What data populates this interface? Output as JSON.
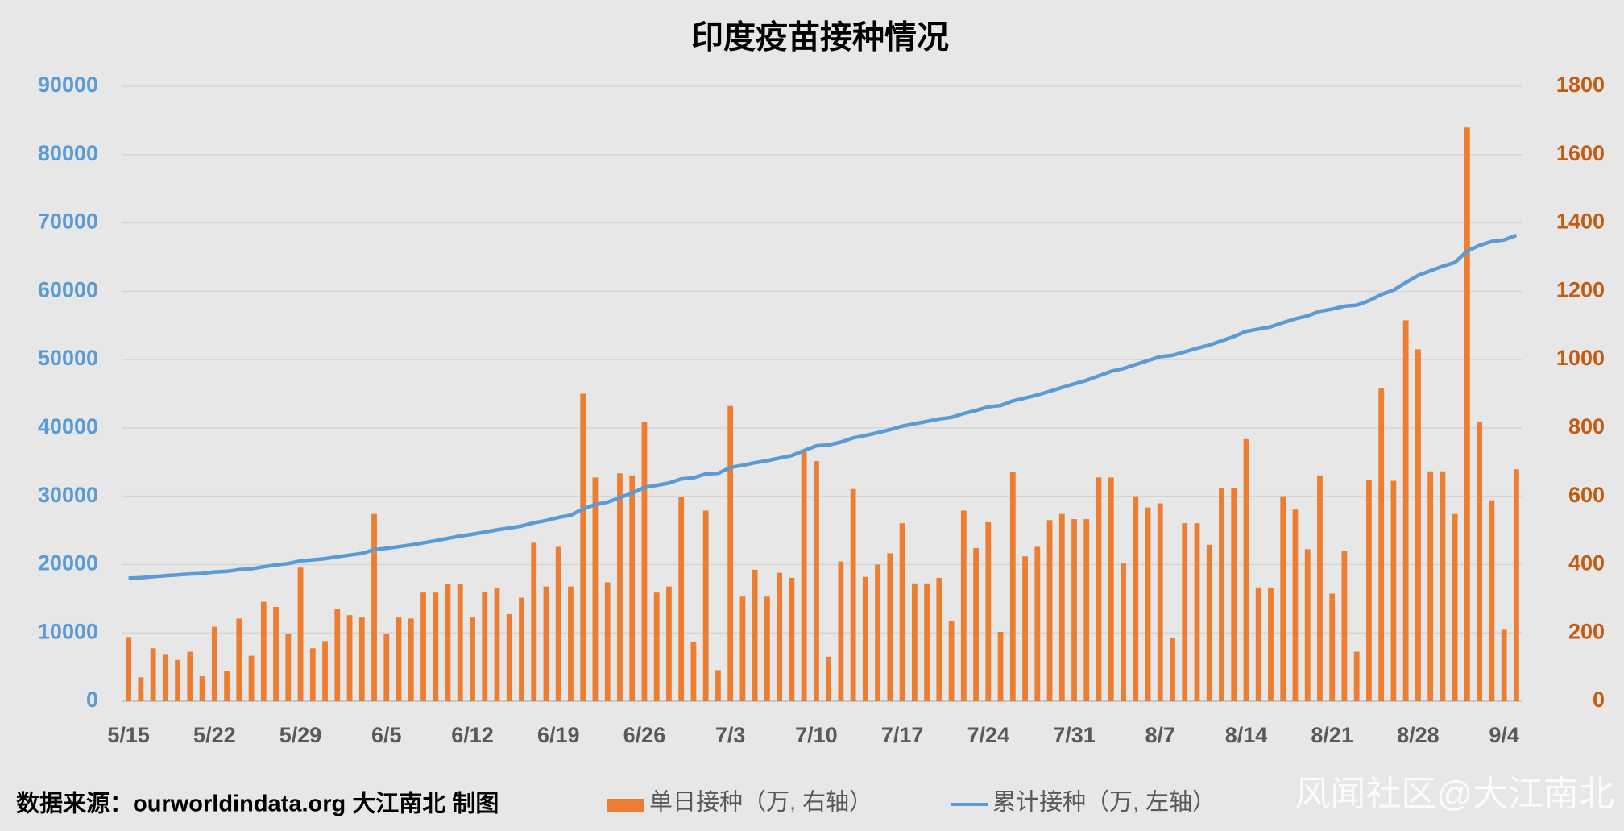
{
  "chart_data": {
    "type": "bar",
    "title": "印度疫苗接种情况",
    "source": "数据来源：ourworldindata.org 大江南北 制图",
    "watermark": "风闻社区@大江南北",
    "categories": [
      "5/15",
      null,
      null,
      null,
      null,
      null,
      null,
      "5/22",
      null,
      null,
      null,
      null,
      null,
      null,
      "5/29",
      null,
      null,
      null,
      null,
      null,
      null,
      "6/5",
      null,
      null,
      null,
      null,
      null,
      null,
      "6/12",
      null,
      null,
      null,
      null,
      null,
      null,
      "6/19",
      null,
      null,
      null,
      null,
      null,
      null,
      "6/26",
      null,
      null,
      null,
      null,
      null,
      null,
      "7/3",
      null,
      null,
      null,
      null,
      null,
      null,
      "7/10",
      null,
      null,
      null,
      null,
      null,
      null,
      "7/17",
      null,
      null,
      null,
      null,
      null,
      null,
      "7/24",
      null,
      null,
      null,
      null,
      null,
      null,
      "7/31",
      null,
      null,
      null,
      null,
      null,
      null,
      "8/7",
      null,
      null,
      null,
      null,
      null,
      null,
      "8/14",
      null,
      null,
      null,
      null,
      null,
      null,
      "8/21",
      null,
      null,
      null,
      null,
      null,
      null,
      "8/28",
      null,
      null,
      null,
      null,
      null,
      null,
      "9/4",
      null
    ],
    "series": [
      {
        "name": "单日接种（万, 右轴）",
        "type": "bar",
        "axis": "y2",
        "color": "#ed7d31",
        "values": [
          188,
          70,
          155,
          136,
          121,
          145,
          73,
          218,
          88,
          242,
          133,
          291,
          276,
          197,
          391,
          155,
          176,
          270,
          252,
          245,
          548,
          197,
          245,
          242,
          318,
          318,
          342,
          342,
          245,
          321,
          330,
          255,
          303,
          464,
          336,
          452,
          336,
          900,
          655,
          348,
          667,
          661,
          818,
          318,
          336,
          597,
          173,
          558,
          91,
          864,
          306,
          385,
          306,
          376,
          361,
          730,
          703,
          130,
          409,
          621,
          364,
          400,
          433,
          521,
          345,
          345,
          361,
          236,
          558,
          448,
          524,
          203,
          670,
          424,
          452,
          530,
          548,
          533,
          533,
          655,
          655,
          403,
          600,
          567,
          579,
          185,
          521,
          521,
          458,
          624,
          624,
          767,
          333,
          333,
          600,
          561,
          445,
          661,
          315,
          439,
          145,
          648,
          915,
          645,
          1115,
          1030,
          673,
          673,
          548,
          1679,
          818,
          588,
          209,
          679
        ]
      },
      {
        "name": "累计接种（万, 左轴）",
        "type": "line",
        "color": "#5b9bd5",
        "values": [
          18000,
          18070,
          18225,
          18361,
          18482,
          18627,
          18700,
          18918,
          19006,
          19248,
          19381,
          19672,
          19948,
          20145,
          20536,
          20691,
          20867,
          21137,
          21389,
          21634,
          22182,
          22379,
          22624,
          22866,
          23184,
          23502,
          23844,
          24186,
          24431,
          24752,
          25082,
          25337,
          25640,
          26104,
          26440,
          26892,
          27228,
          28128,
          28783,
          29131,
          29798,
          30459,
          31277,
          31595,
          31931,
          32528,
          32701,
          33259,
          33350,
          34214,
          34520,
          34905,
          35211,
          35587,
          35948,
          36678,
          37381,
          37511,
          37920,
          38541,
          38905,
          39305,
          39738,
          40259,
          40604,
          40949,
          41310,
          41546,
          42104,
          42552,
          43076,
          43279,
          43949,
          44373,
          44825,
          45355,
          45903,
          46436,
          46969,
          47624,
          48279,
          48682,
          49282,
          49849,
          50428,
          50613,
          51134,
          51655,
          52113,
          52737,
          53361,
          54128,
          54461,
          54794,
          55394,
          55955,
          56400,
          57061,
          57376,
          57815,
          57960,
          58608,
          59523,
          60168,
          61283,
          62313,
          62986,
          63659,
          64207,
          65886,
          66704,
          67292,
          67501,
          68180
        ]
      }
    ],
    "ylim": [
      0,
      90000
    ],
    "yticks": [
      0,
      10000,
      20000,
      30000,
      40000,
      50000,
      60000,
      70000,
      80000,
      90000
    ],
    "y2lim": [
      0,
      1800
    ],
    "y2ticks": [
      0,
      200,
      400,
      600,
      800,
      1000,
      1200,
      1400,
      1600,
      1800
    ],
    "grid": true
  }
}
